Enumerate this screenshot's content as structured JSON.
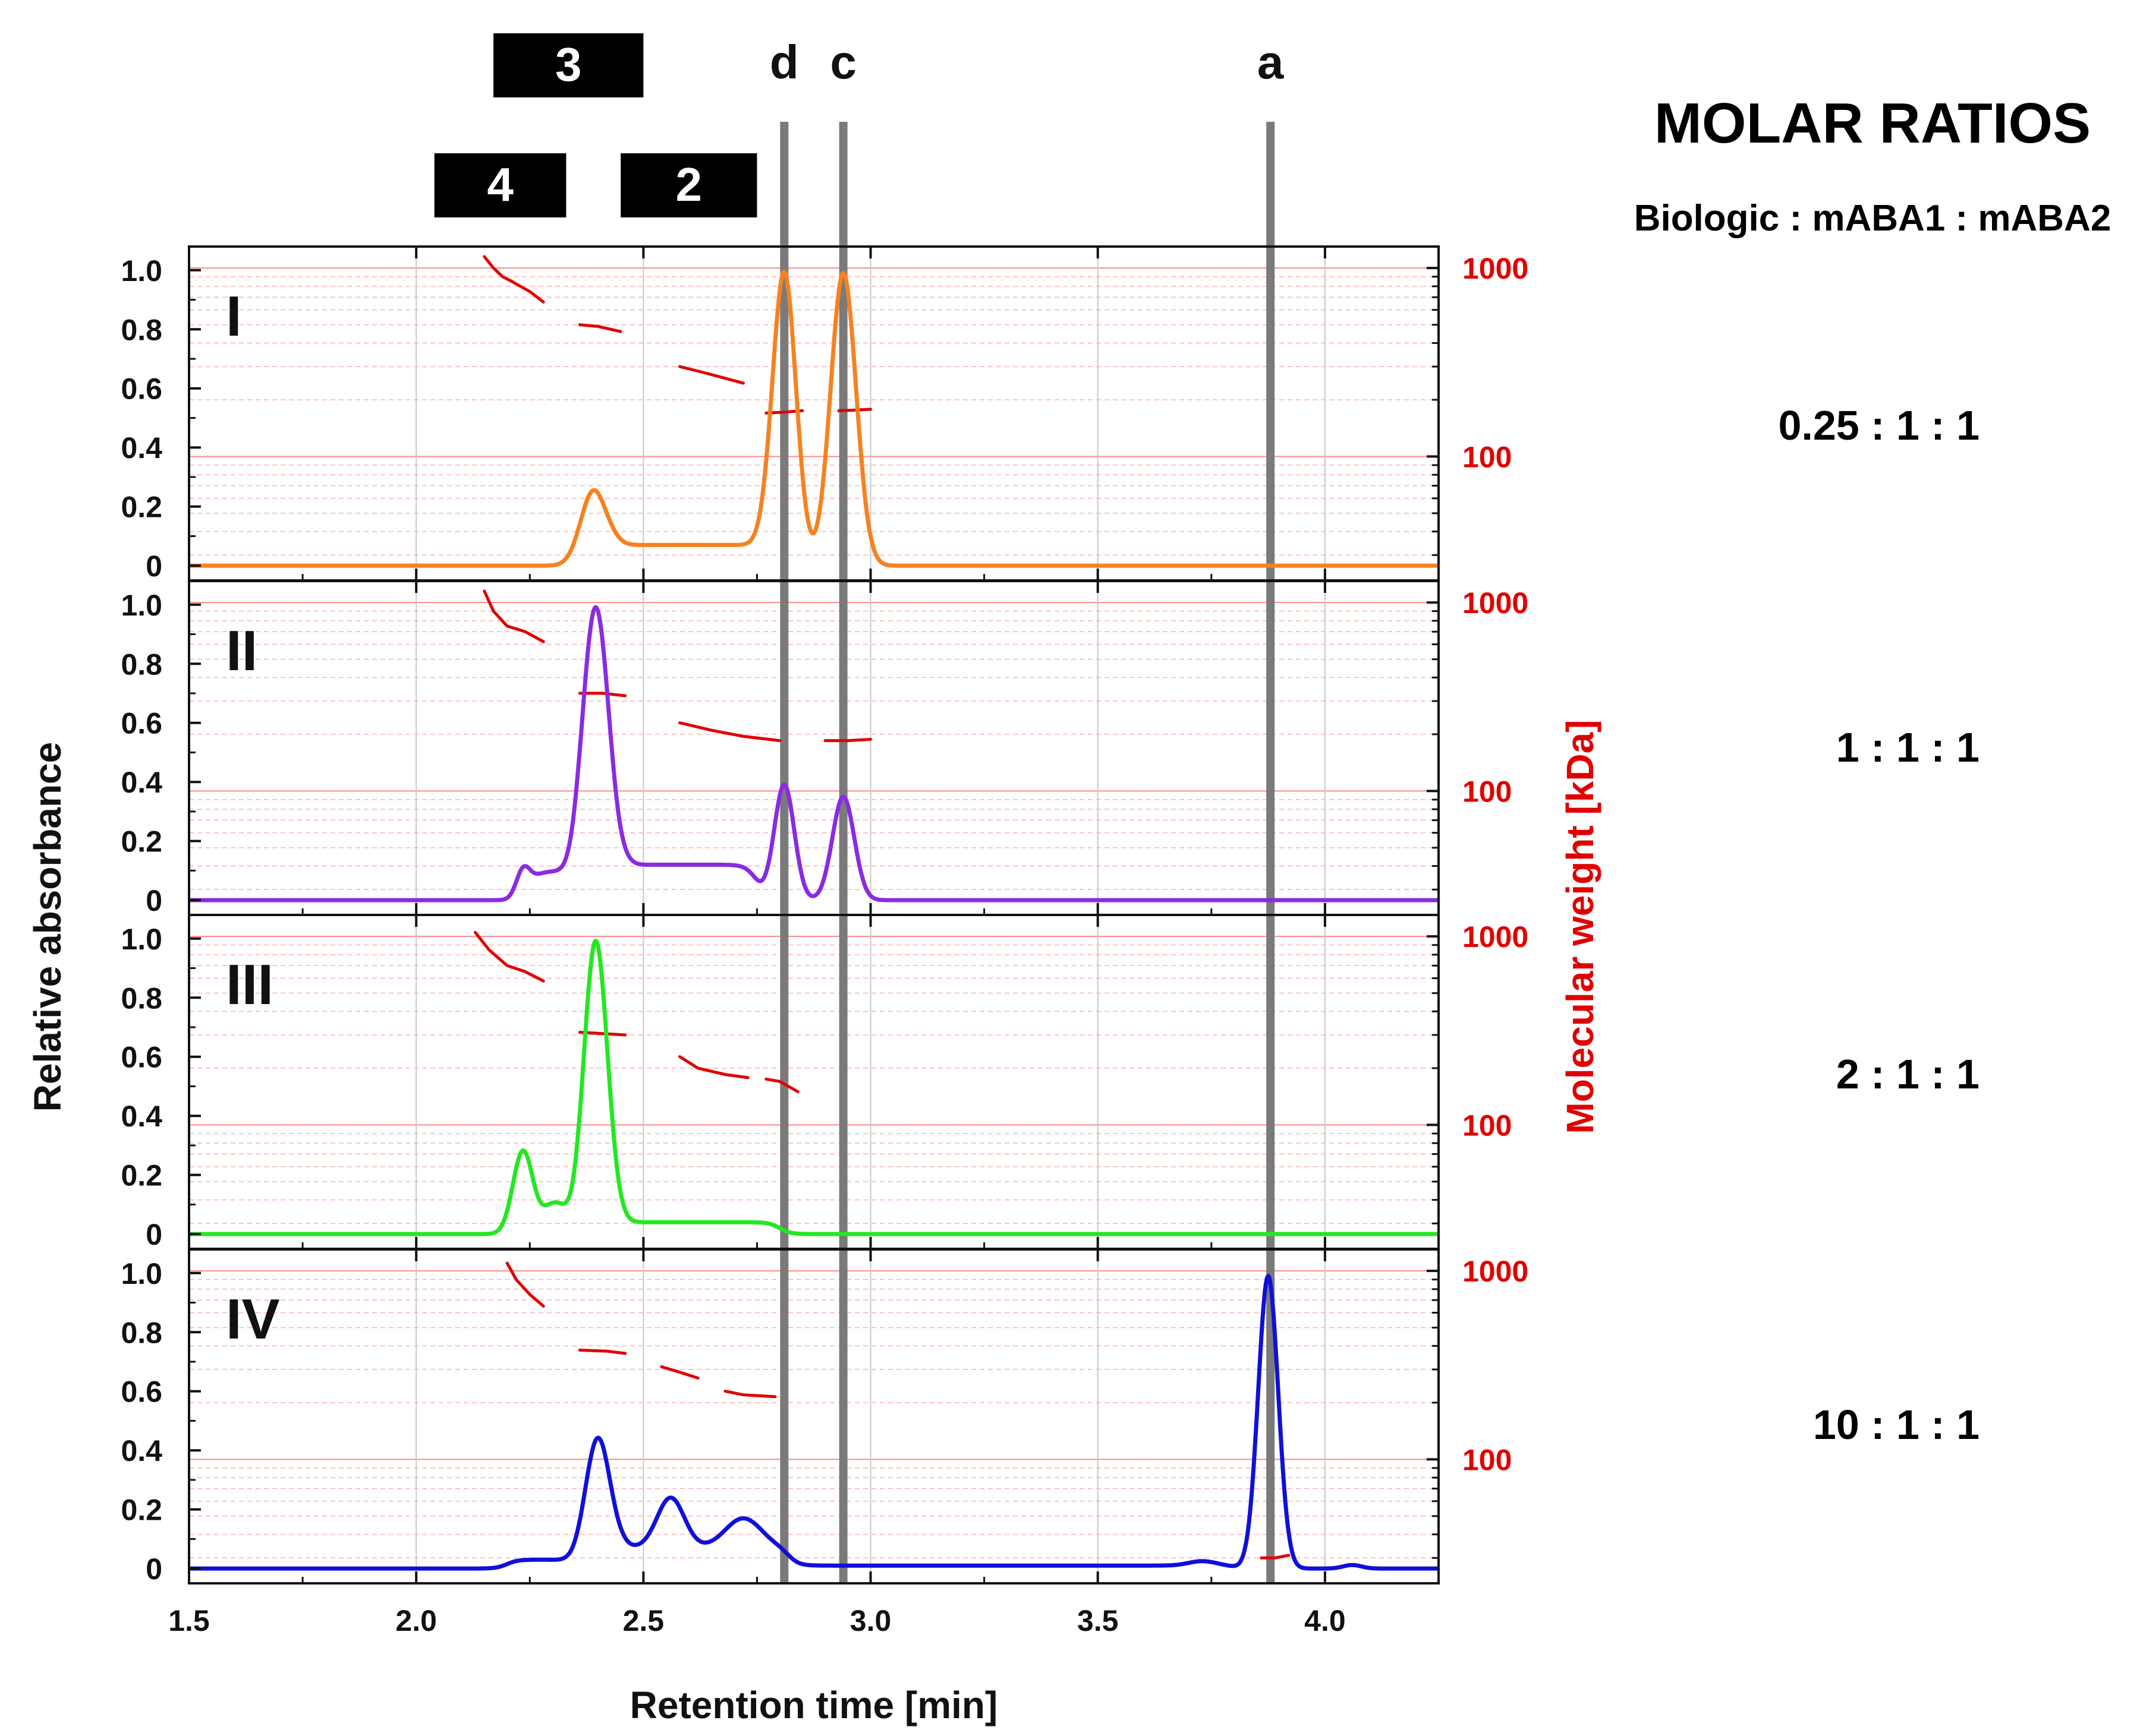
{
  "chart_data": {
    "type": "line",
    "xlabel": "Retention time [min]",
    "ylabel_left": "Relative absorbance",
    "ylabel_right": "Molecular weight [kDa]",
    "xlim": [
      1.5,
      4.25
    ],
    "x_ticks": [
      1.5,
      2.0,
      2.5,
      3.0,
      3.5,
      4.0
    ],
    "x_tick_labels": [
      "1.5",
      "2.0",
      "2.5",
      "3.0",
      "3.5",
      "4.0"
    ],
    "ylim_left": [
      -0.05,
      1.08
    ],
    "y_ticks_left": [
      0,
      0.2,
      0.4,
      0.6,
      0.8,
      1.0
    ],
    "y_tick_labels_left": [
      "0",
      "0.2",
      "0.4",
      "0.6",
      "0.8",
      "1.0"
    ],
    "ylim_right_kda": [
      22,
      1300
    ],
    "y_scale_right": "log",
    "y_ticks_right": [
      100,
      1000
    ],
    "y_tick_labels_right": [
      "100",
      "1000"
    ],
    "reference_lines": [
      {
        "label": "d",
        "x": 2.81
      },
      {
        "label": "c",
        "x": 2.94
      },
      {
        "label": "a",
        "x": 3.88
      }
    ],
    "species_boxes": [
      {
        "label": "3",
        "x_start": 2.17,
        "x_end": 2.5,
        "row": "top"
      },
      {
        "label": "4",
        "x_start": 2.04,
        "x_end": 2.33,
        "row": "bottom"
      },
      {
        "label": "2",
        "x_start": 2.45,
        "x_end": 2.75,
        "row": "bottom"
      }
    ],
    "panels": [
      {
        "label": "I",
        "color": "#f58220",
        "molar_ratio": "0.25  :  1  :  1",
        "baseline": 0.0,
        "peaks": [
          {
            "x": 2.39,
            "height": 0.25,
            "width": 0.028
          },
          {
            "x": 2.81,
            "height": 0.99,
            "width": 0.026
          },
          {
            "x": 2.94,
            "height": 0.99,
            "width": 0.028
          }
        ],
        "plateaus": [
          {
            "x_start": 2.42,
            "x_end": 2.78,
            "level": 0.07
          }
        ],
        "mw_segments": [
          {
            "x": [
              2.15,
              2.17,
              2.19,
              2.21,
              2.25,
              2.28
            ],
            "mw": [
              1150,
              1000,
              900,
              850,
              750,
              660
            ]
          },
          {
            "x": [
              2.36,
              2.4,
              2.45
            ],
            "mw": [
              500,
              490,
              460
            ]
          },
          {
            "x": [
              2.58,
              2.63,
              2.68,
              2.72
            ],
            "mw": [
              300,
              280,
              260,
              245
            ]
          },
          {
            "x": [
              2.77,
              2.81,
              2.85
            ],
            "mw": [
              170,
              172,
              175
            ]
          },
          {
            "x": [
              2.93,
              2.96,
              3.0
            ],
            "mw": [
              175,
              176,
              178
            ]
          }
        ]
      },
      {
        "label": "II",
        "color": "#8a2be2",
        "molar_ratio": "1  :  1  :  1",
        "baseline": 0.0,
        "peaks": [
          {
            "x": 2.235,
            "height": 0.09,
            "width": 0.015
          },
          {
            "x": 2.395,
            "height": 0.99,
            "width": 0.03
          },
          {
            "x": 2.81,
            "height": 0.39,
            "width": 0.022
          },
          {
            "x": 2.94,
            "height": 0.35,
            "width": 0.024
          }
        ],
        "plateaus": [
          {
            "x_start": 2.25,
            "x_end": 2.33,
            "level": 0.1
          },
          {
            "x_start": 2.45,
            "x_end": 2.75,
            "level": 0.12
          }
        ],
        "mw_segments": [
          {
            "x": [
              2.15,
              2.17,
              2.2,
              2.24,
              2.28
            ],
            "mw": [
              1150,
              900,
              750,
              700,
              620
            ]
          },
          {
            "x": [
              2.36,
              2.41,
              2.46
            ],
            "mw": [
              330,
              330,
              320
            ]
          },
          {
            "x": [
              2.58,
              2.65,
              2.72,
              2.8
            ],
            "mw": [
              230,
              210,
              195,
              185
            ]
          },
          {
            "x": [
              2.9,
              2.95,
              3.0
            ],
            "mw": [
              185,
              185,
              188
            ]
          }
        ]
      },
      {
        "label": "III",
        "color": "#22e822",
        "molar_ratio": "2  :  1  :  1",
        "baseline": 0.0,
        "peaks": [
          {
            "x": 2.235,
            "height": 0.28,
            "width": 0.022
          },
          {
            "x": 2.395,
            "height": 0.99,
            "width": 0.026
          }
        ],
        "plateaus": [
          {
            "x_start": 2.28,
            "x_end": 2.33,
            "level": 0.13
          },
          {
            "x_start": 2.43,
            "x_end": 2.8,
            "level": 0.04
          }
        ],
        "mw_segments": [
          {
            "x": [
              2.13,
              2.16,
              2.2,
              2.24,
              2.28
            ],
            "mw": [
              1050,
              850,
              700,
              650,
              580
            ]
          },
          {
            "x": [
              2.36,
              2.41,
              2.46
            ],
            "mw": [
              310,
              305,
              300
            ]
          },
          {
            "x": [
              2.58,
              2.62,
              2.68,
              2.73
            ],
            "mw": [
              230,
              200,
              185,
              178
            ]
          },
          {
            "x": [
              2.77,
              2.8,
              2.84
            ],
            "mw": [
              175,
              170,
              150
            ]
          }
        ]
      },
      {
        "label": "IV",
        "color": "#1010d8",
        "molar_ratio": "10  :  1  :  1",
        "baseline": 0.0,
        "peaks": [
          {
            "x": 2.4,
            "height": 0.44,
            "width": 0.028
          },
          {
            "x": 2.56,
            "height": 0.17,
            "width": 0.03
          },
          {
            "x": 2.72,
            "height": 0.1,
            "width": 0.04
          },
          {
            "x": 3.73,
            "height": 0.015,
            "width": 0.03
          },
          {
            "x": 3.875,
            "height": 0.99,
            "width": 0.022
          },
          {
            "x": 4.06,
            "height": 0.012,
            "width": 0.02
          }
        ],
        "plateaus": [
          {
            "x_start": 2.2,
            "x_end": 2.34,
            "level": 0.03
          },
          {
            "x_start": 2.44,
            "x_end": 2.82,
            "level": 0.07
          },
          {
            "x_start": 2.82,
            "x_end": 3.8,
            "level": 0.01
          }
        ],
        "mw_segments": [
          {
            "x": [
              2.2,
              2.22,
              2.25,
              2.28
            ],
            "mw": [
              1100,
              900,
              750,
              650
            ]
          },
          {
            "x": [
              2.36,
              2.42,
              2.46
            ],
            "mw": [
              380,
              375,
              365
            ]
          },
          {
            "x": [
              2.54,
              2.58,
              2.62
            ],
            "mw": [
              310,
              290,
              270
            ]
          },
          {
            "x": [
              2.68,
              2.72,
              2.79
            ],
            "mw": [
              230,
              220,
              215
            ]
          },
          {
            "x": [
              3.86,
              3.89,
              3.92
            ],
            "mw": [
              30,
              30,
              31
            ]
          }
        ]
      }
    ]
  },
  "legend_panel": {
    "title": "MOLAR RATIOS",
    "subtitle": "Biologic : mABA1 : mABA2"
  }
}
